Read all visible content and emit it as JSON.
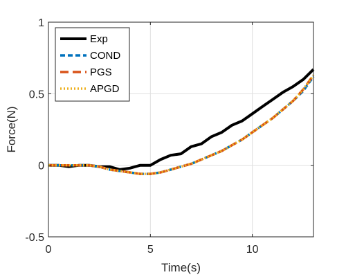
{
  "chart_data": {
    "type": "line",
    "title": "",
    "xlabel": "Time(s)",
    "ylabel": "Force(N)",
    "xlim": [
      0,
      13
    ],
    "ylim": [
      -0.5,
      1
    ],
    "x_ticks": [
      0,
      5,
      10
    ],
    "y_ticks": [
      -0.5,
      0,
      0.5,
      1
    ],
    "x_tick_labels": [
      "0",
      "5",
      "10"
    ],
    "y_tick_labels": [
      "-0.5",
      "0",
      "0.5",
      "1"
    ],
    "grid": true,
    "legend_position": "top-left",
    "series": [
      {
        "name": "Exp",
        "color": "#000000",
        "style": "solid",
        "x": [
          0,
          0.5,
          1.0,
          1.5,
          2.0,
          2.5,
          3.0,
          3.5,
          4.0,
          4.5,
          5.0,
          5.5,
          6.0,
          6.5,
          7.0,
          7.5,
          8.0,
          8.5,
          9.0,
          9.5,
          10.0,
          10.5,
          11.0,
          11.5,
          12.0,
          12.5,
          13.0
        ],
        "y": [
          0.0,
          0.0,
          -0.01,
          0.0,
          0.0,
          -0.01,
          -0.01,
          -0.03,
          -0.02,
          0.0,
          0.0,
          0.04,
          0.07,
          0.08,
          0.13,
          0.15,
          0.2,
          0.23,
          0.28,
          0.31,
          0.36,
          0.41,
          0.46,
          0.51,
          0.55,
          0.6,
          0.67
        ]
      },
      {
        "name": "COND",
        "color": "#0072BD",
        "style": "dash",
        "x": [
          0,
          0.5,
          1.0,
          1.5,
          2.0,
          2.5,
          3.0,
          3.5,
          4.0,
          4.5,
          5.0,
          5.5,
          6.0,
          6.5,
          7.0,
          7.5,
          8.0,
          8.5,
          9.0,
          9.5,
          10.0,
          10.5,
          11.0,
          11.5,
          12.0,
          12.5,
          13.0
        ],
        "y": [
          0.0,
          0.0,
          0.0,
          0.0,
          0.0,
          -0.01,
          -0.03,
          -0.04,
          -0.05,
          -0.06,
          -0.06,
          -0.05,
          -0.03,
          -0.01,
          0.01,
          0.04,
          0.07,
          0.1,
          0.14,
          0.18,
          0.23,
          0.28,
          0.33,
          0.39,
          0.45,
          0.52,
          0.62
        ]
      },
      {
        "name": "PGS",
        "color": "#D95319",
        "style": "longdash",
        "x": [
          0,
          0.5,
          1.0,
          1.5,
          2.0,
          2.5,
          3.0,
          3.5,
          4.0,
          4.5,
          5.0,
          5.5,
          6.0,
          6.5,
          7.0,
          7.5,
          8.0,
          8.5,
          9.0,
          9.5,
          10.0,
          10.5,
          11.0,
          11.5,
          12.0,
          12.5,
          13.0
        ],
        "y": [
          0.0,
          0.0,
          0.0,
          0.0,
          0.0,
          -0.01,
          -0.03,
          -0.04,
          -0.05,
          -0.06,
          -0.06,
          -0.05,
          -0.03,
          -0.01,
          0.01,
          0.04,
          0.07,
          0.1,
          0.14,
          0.18,
          0.23,
          0.28,
          0.33,
          0.39,
          0.45,
          0.53,
          0.63
        ]
      },
      {
        "name": "APGD",
        "color": "#EDB120",
        "style": "dot",
        "x": [
          0,
          0.5,
          1.0,
          1.5,
          2.0,
          2.5,
          3.0,
          3.5,
          4.0,
          4.5,
          5.0,
          5.5,
          6.0,
          6.5,
          7.0,
          7.5,
          8.0,
          8.5,
          9.0,
          9.5,
          10.0,
          10.5,
          11.0,
          11.5,
          12.0,
          12.5,
          13.0
        ],
        "y": [
          0.0,
          0.0,
          0.0,
          0.0,
          0.0,
          -0.01,
          -0.03,
          -0.04,
          -0.05,
          -0.06,
          -0.06,
          -0.05,
          -0.03,
          -0.01,
          0.01,
          0.04,
          0.07,
          0.1,
          0.14,
          0.18,
          0.23,
          0.28,
          0.33,
          0.39,
          0.45,
          0.53,
          0.63
        ]
      }
    ]
  }
}
